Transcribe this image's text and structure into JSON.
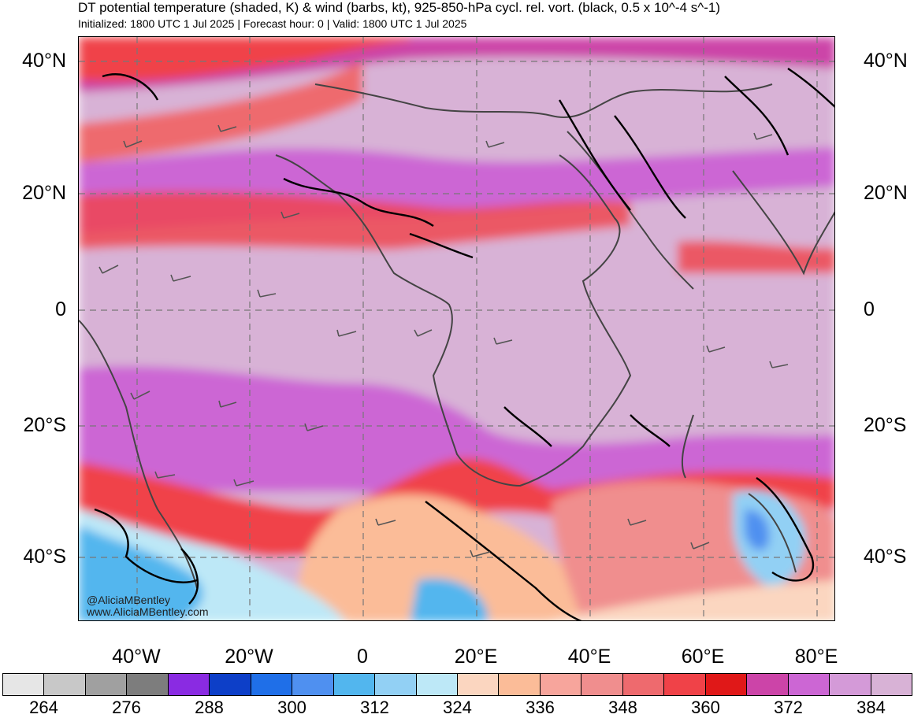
{
  "header": {
    "title": "DT potential temperature (shaded, K) & wind (barbs, kt), 925-850-hPa cycl. rel. vort. (black, 0.5 x 10^-4 s^-1)",
    "subtitle": "Initialized: 1800 UTC 1 Jul 2025 | Forecast hour: 0 | Valid: 1800 UTC 1 Jul 2025"
  },
  "map": {
    "lat_labels": [
      "40°N",
      "20°N",
      "0",
      "20°S",
      "40°S"
    ],
    "lon_labels": [
      "40°W",
      "20°W",
      "0",
      "20°E",
      "40°E",
      "60°E",
      "80°E"
    ],
    "credit": [
      "@AliciaMBentley",
      "www.AliciaMBentley.com"
    ]
  },
  "colorbar": {
    "colors": [
      "#e6e6e6",
      "#c8c8c8",
      "#a0a0a0",
      "#7d7d7d",
      "#8a2be2",
      "#0d3fc8",
      "#1f6fe8",
      "#4f90f0",
      "#52b6ee",
      "#92d0f4",
      "#bde8f7",
      "#fbd6c0",
      "#fbbc98",
      "#f7a59c",
      "#f08e8e",
      "#ee6a6e",
      "#f04248",
      "#e01818",
      "#cc44a8",
      "#cc66d4",
      "#d49ad8",
      "#d8b2d6"
    ],
    "labels": [
      "264",
      "276",
      "288",
      "300",
      "312",
      "324",
      "336",
      "348",
      "360",
      "372",
      "384"
    ]
  }
}
